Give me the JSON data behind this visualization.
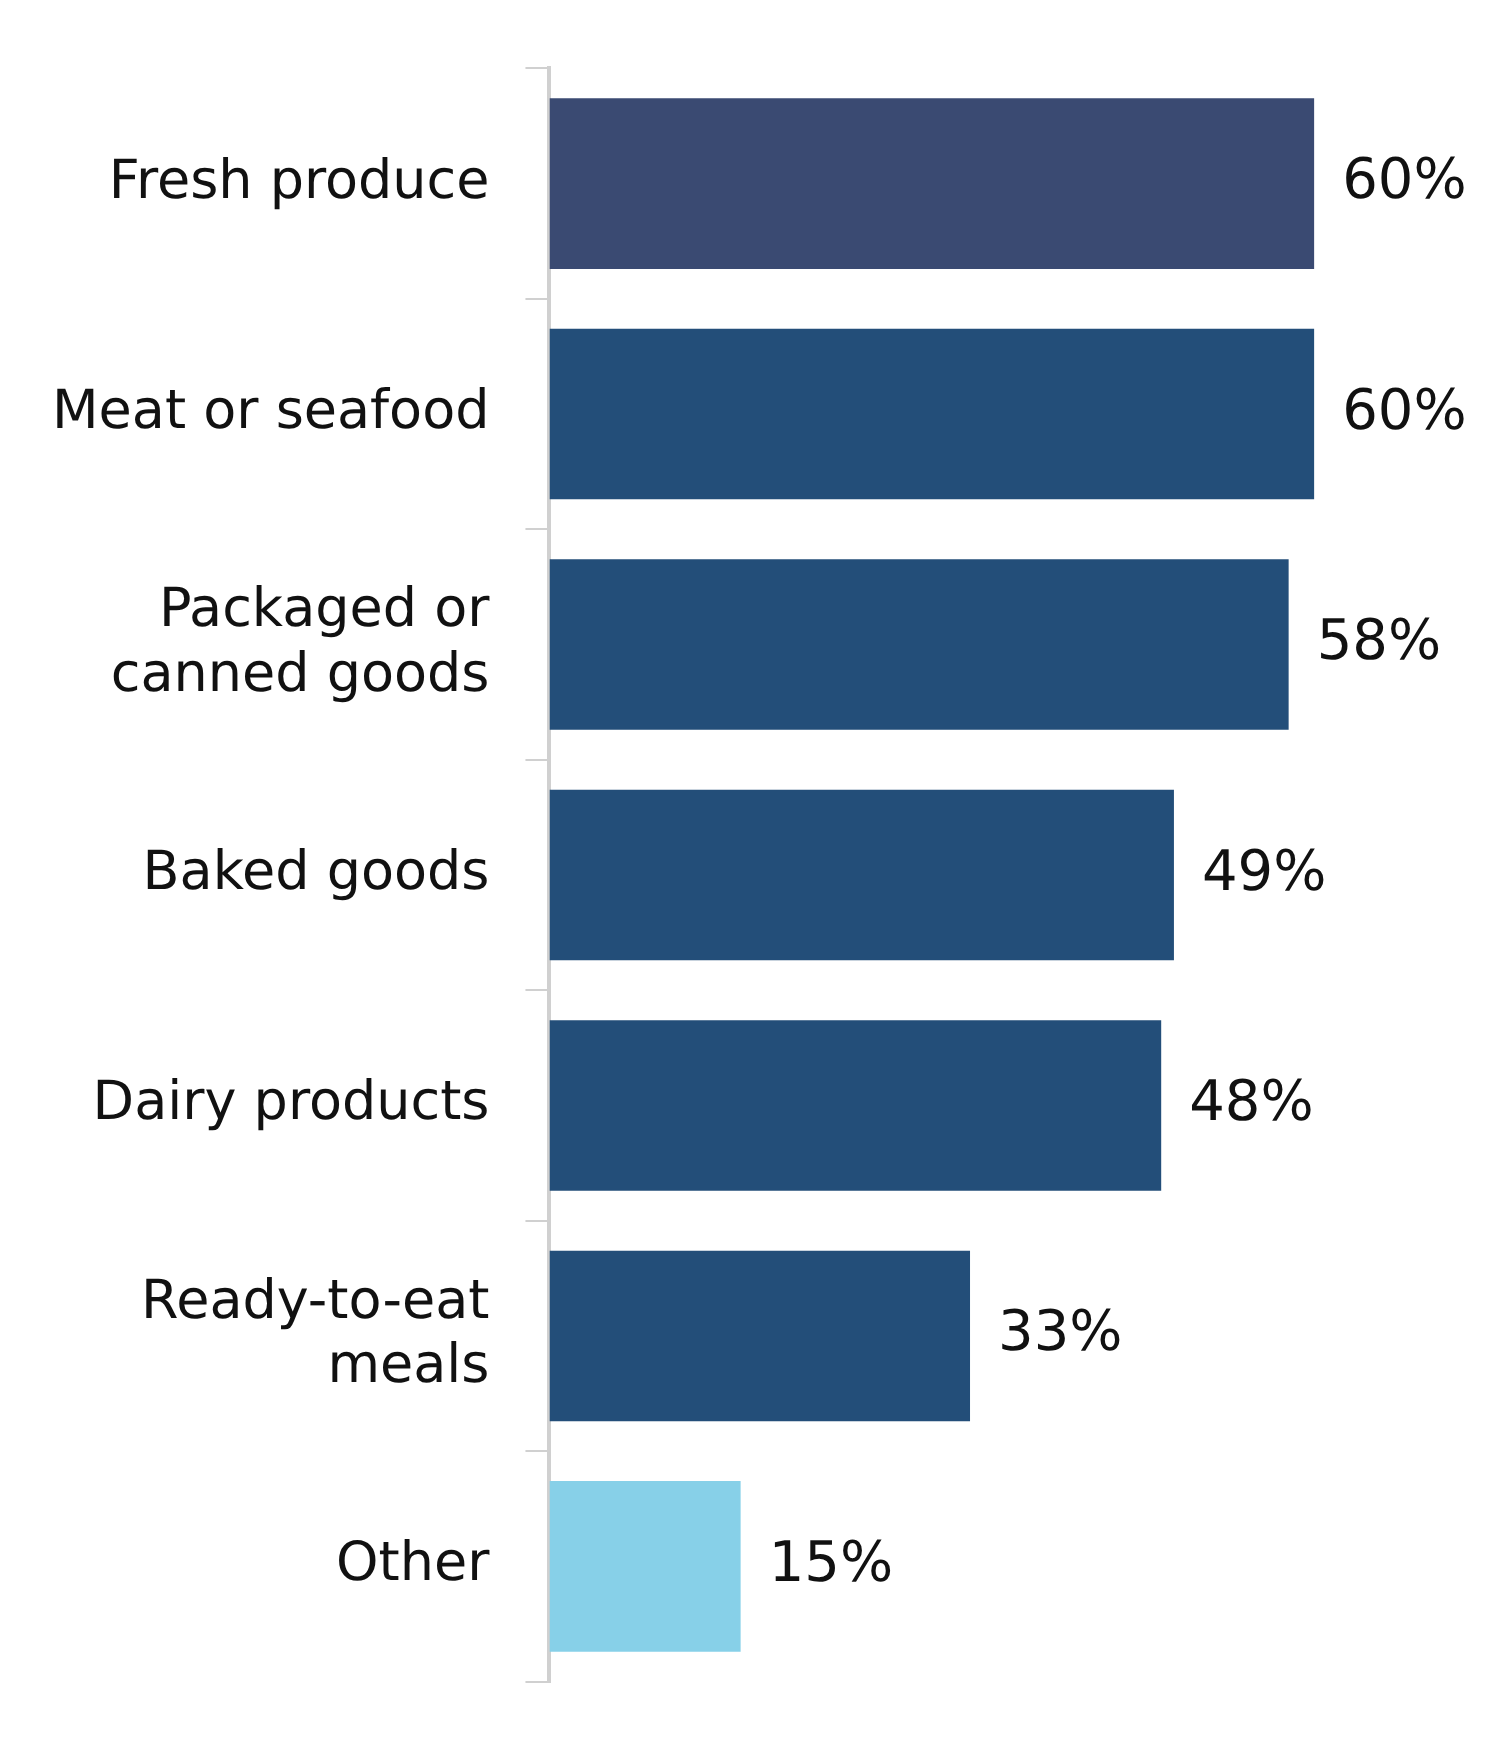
{
  "chart_data": {
    "type": "bar",
    "orientation": "horizontal",
    "categories": [
      "Fresh produce",
      "Meat or seafood",
      "Packaged or canned goods",
      "Baked goods",
      "Dairy products",
      "Ready-to-eat meals",
      "Other"
    ],
    "values": [
      60,
      60,
      58,
      49,
      48,
      33,
      15
    ],
    "colors": [
      "#3a4a72",
      "#234e79",
      "#234e79",
      "#234e79",
      "#234e79",
      "#234e79",
      "#87d0e8"
    ],
    "value_labels": [
      "60%",
      "60%",
      "58%",
      "49%",
      "48%",
      "33%",
      "15%"
    ],
    "legend": false
  }
}
